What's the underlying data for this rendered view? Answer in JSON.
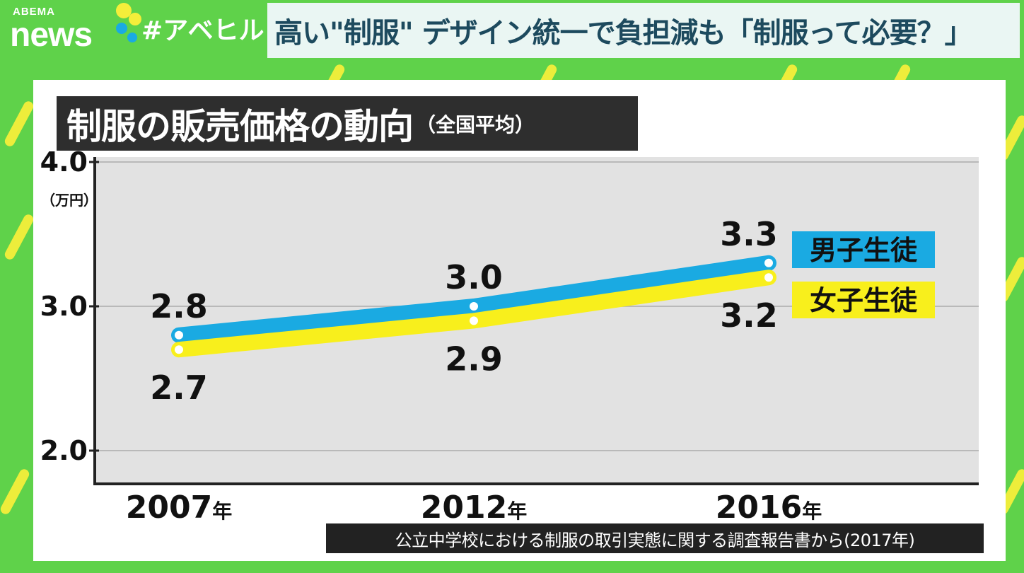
{
  "branding": {
    "logo_top": "ABEMA",
    "logo_bottom": "news",
    "hashtag": "#アベヒル"
  },
  "headline": "高い\"制服\" デザイン統一で負担減も「制服って必要？」",
  "colors": {
    "background": "#5fd24a",
    "male": "#1aaae2",
    "female": "#f8ef1c",
    "plot": "#e2e2e2",
    "title_bg": "#2e2e2e"
  },
  "chart_data": {
    "type": "line",
    "title": "制服の販売価格の動向",
    "subtitle": "（全国平均）",
    "ylabel": "（万円）",
    "ylim": [
      2.0,
      4.0
    ],
    "yticks": [
      {
        "value": 4.0,
        "label": "4.0"
      },
      {
        "value": 3.0,
        "label": "3.0"
      },
      {
        "value": 2.0,
        "label": "2.0"
      }
    ],
    "categories": [
      {
        "year": "2007",
        "suffix": "年"
      },
      {
        "year": "2012",
        "suffix": "年"
      },
      {
        "year": "2016",
        "suffix": "年"
      }
    ],
    "grid": true,
    "series": [
      {
        "name": "男子生徒",
        "color": "#1aaae2",
        "values": [
          2.8,
          3.0,
          3.3
        ],
        "labels": [
          "2.8",
          "3.0",
          "3.3"
        ]
      },
      {
        "name": "女子生徒",
        "color": "#f8ef1c",
        "values": [
          2.7,
          2.9,
          3.2
        ],
        "labels": [
          "2.7",
          "2.9",
          "3.2"
        ]
      }
    ]
  },
  "source": "公立中学校における制服の取引実態に関する調査報告書から(2017年)"
}
